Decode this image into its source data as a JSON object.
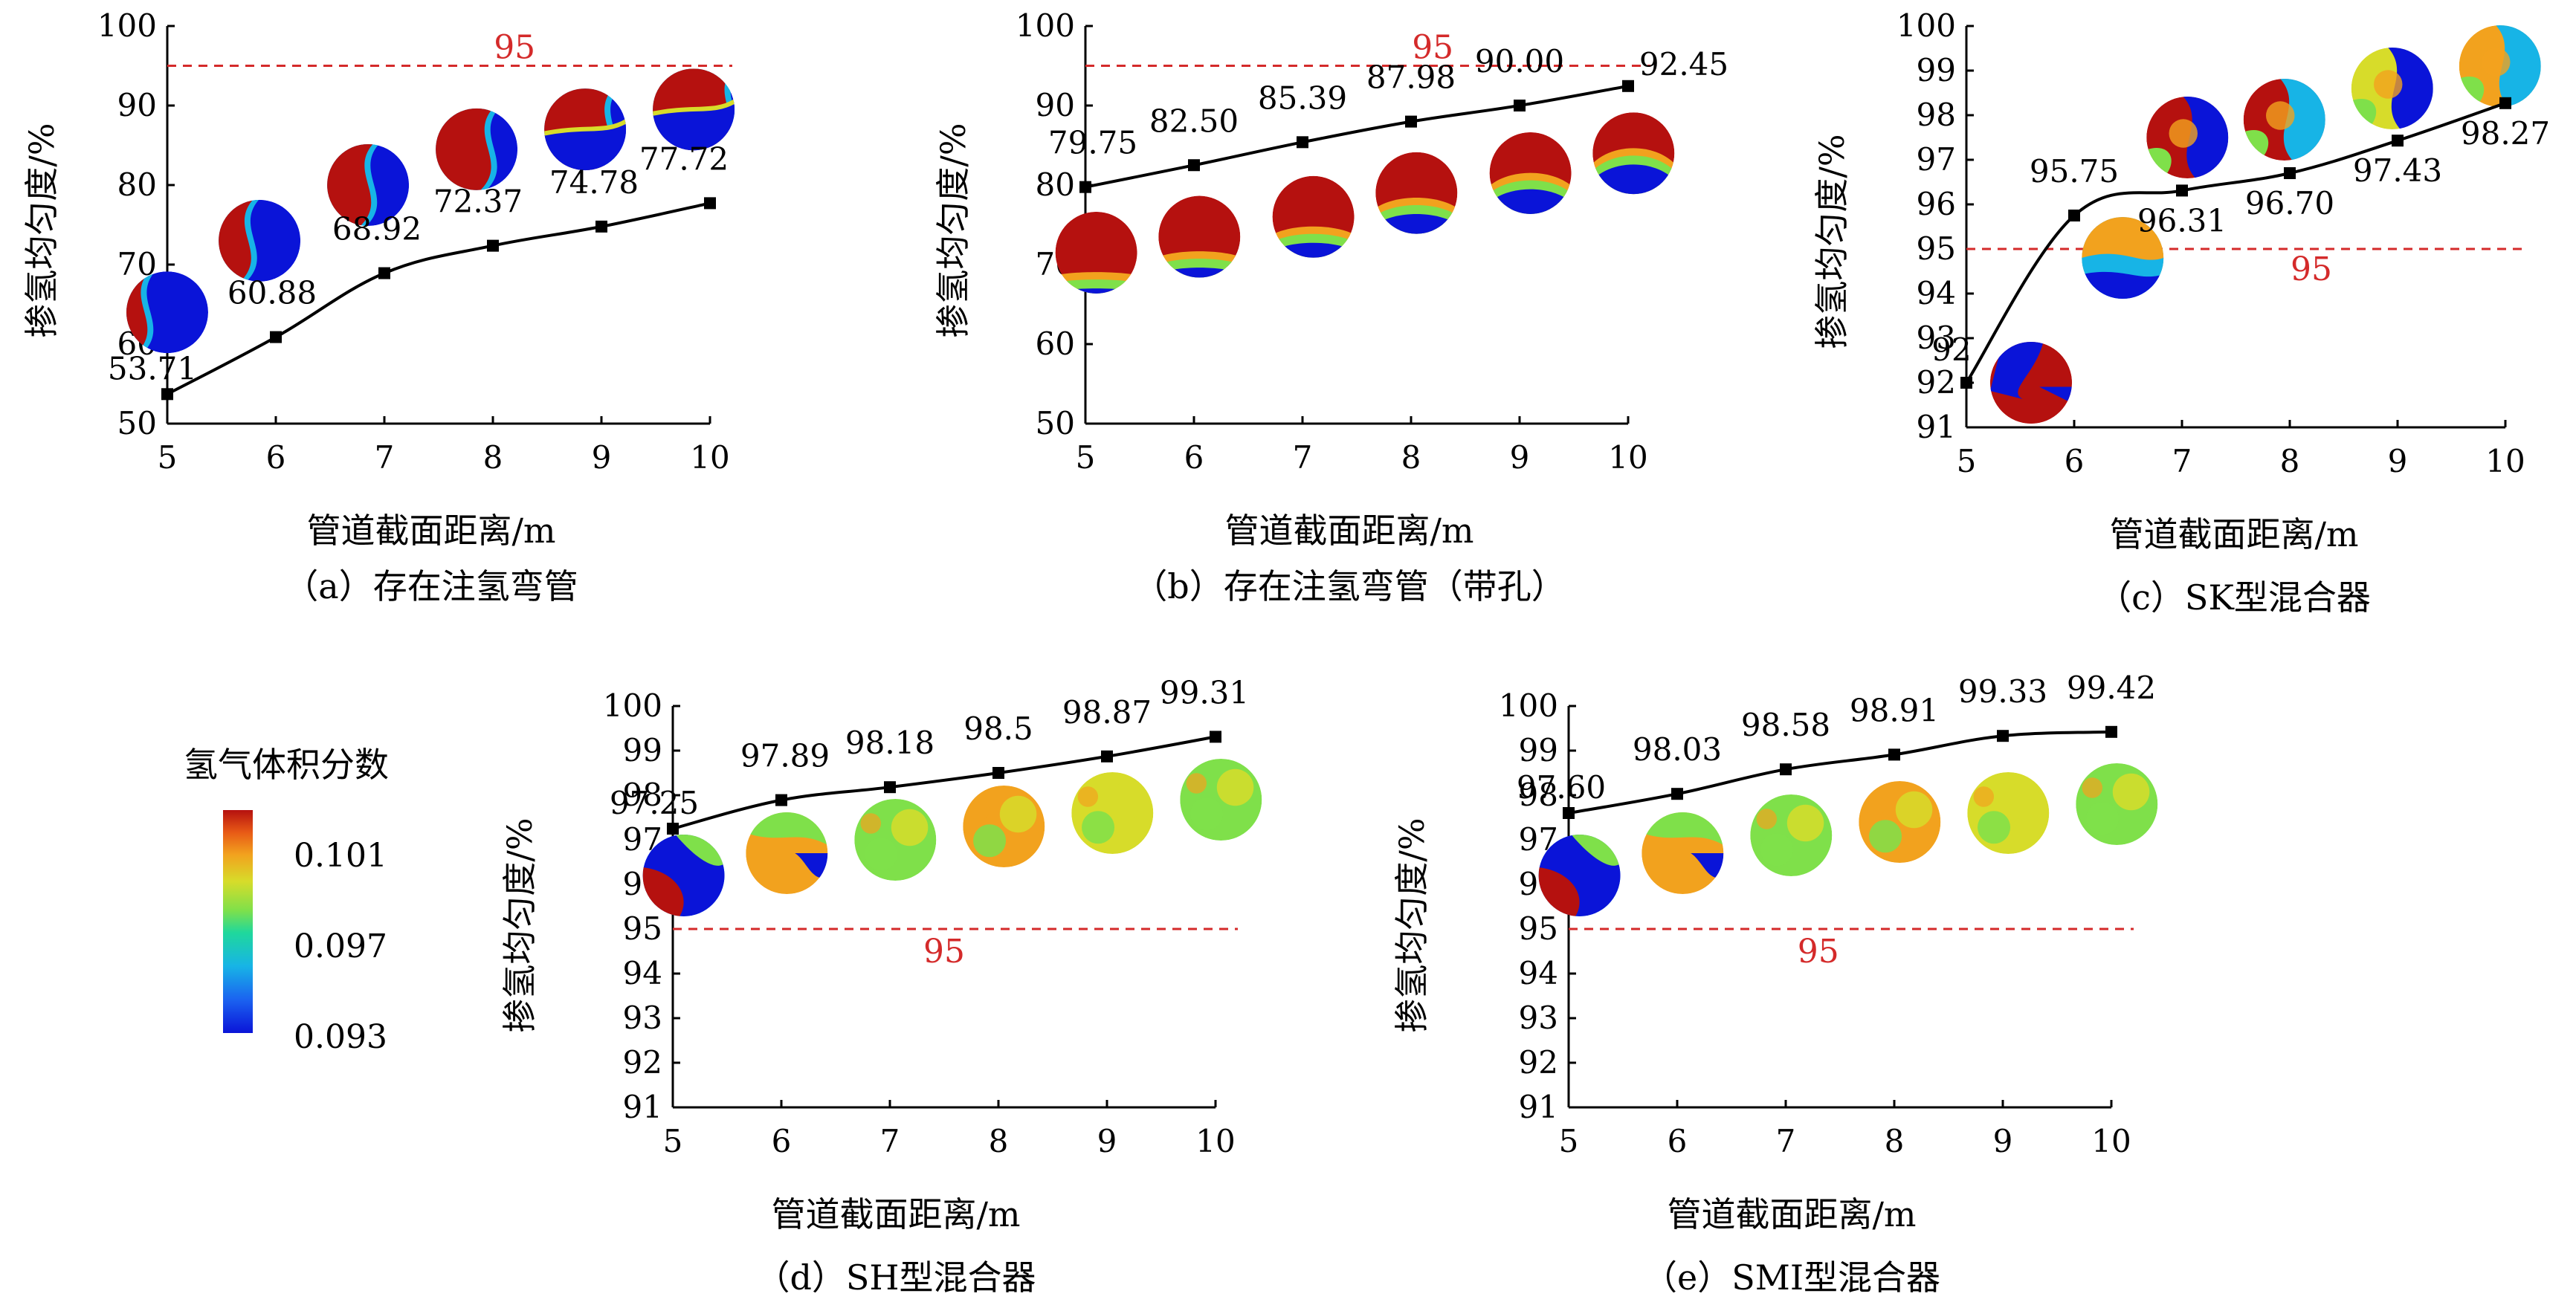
{
  "colors": {
    "line": "#000000",
    "reference": "#d42a2a",
    "colormap": [
      "#0a14d8",
      "#1b63f0",
      "#17b4e6",
      "#1fd89c",
      "#7fe04a",
      "#d7dc2a",
      "#f2a21e",
      "#e85a16",
      "#b5110f"
    ]
  },
  "legend": {
    "title": "氢气体积分数",
    "ticks": [
      "0.101",
      "0.097",
      "0.093"
    ]
  },
  "chart_data": [
    {
      "id": "a",
      "type": "line",
      "caption": "（a）存在注氢弯管",
      "xlabel": "管道截面距离/m",
      "ylabel": "掺氢均匀度/%",
      "x": [
        5,
        6,
        7,
        8,
        9,
        10
      ],
      "y": [
        53.71,
        60.88,
        68.92,
        72.37,
        74.78,
        77.72
      ],
      "labels": [
        "53.71",
        "60.88",
        "68.92",
        "72.37",
        "74.78",
        "77.72"
      ],
      "ylim": [
        50,
        100
      ],
      "yticks": [
        50,
        60,
        70,
        80,
        90,
        100
      ],
      "reference": {
        "value": 95,
        "label": "95"
      },
      "section_style": "red-blue-split"
    },
    {
      "id": "b",
      "type": "line",
      "caption": "（b）存在注氢弯管（带孔）",
      "xlabel": "管道截面距离/m",
      "ylabel": "掺氢均匀度/%",
      "x": [
        5,
        6,
        7,
        8,
        9,
        10
      ],
      "y": [
        79.75,
        82.5,
        85.39,
        87.98,
        90.0,
        92.45
      ],
      "labels": [
        "79.75",
        "82.50",
        "85.39",
        "87.98",
        "90.00",
        "92.45"
      ],
      "ylim": [
        50,
        100
      ],
      "yticks": [
        50,
        60,
        70,
        80,
        90,
        100
      ],
      "reference": {
        "value": 95,
        "label": "95"
      },
      "section_style": "red-bottom-band"
    },
    {
      "id": "c",
      "type": "line",
      "caption": "（c）SK型混合器",
      "xlabel": "管道截面距离/m",
      "ylabel": "掺氢均匀度/%",
      "x": [
        5,
        6,
        7,
        8,
        9,
        10
      ],
      "y": [
        92.0,
        95.75,
        96.31,
        96.7,
        97.43,
        98.27
      ],
      "labels": [
        "92",
        "95.75",
        "96.31",
        "96.70",
        "97.43",
        "98.27"
      ],
      "ylim": [
        91,
        100
      ],
      "yticks": [
        91,
        92,
        93,
        94,
        95,
        96,
        97,
        98,
        99,
        100
      ],
      "reference": {
        "value": 95,
        "label": "95"
      },
      "section_style": "swirl"
    },
    {
      "id": "d",
      "type": "line",
      "caption": "（d）SH型混合器",
      "xlabel": "管道截面距离/m",
      "ylabel": "掺氢均匀度/%",
      "x": [
        5,
        6,
        7,
        8,
        9,
        10
      ],
      "y": [
        97.25,
        97.89,
        98.18,
        98.5,
        98.87,
        99.31
      ],
      "labels": [
        "97.25",
        "97.89",
        "98.18",
        "98.5",
        "98.87",
        "99.31"
      ],
      "ylim": [
        91,
        100
      ],
      "yticks": [
        91,
        92,
        93,
        94,
        95,
        96,
        97,
        98,
        99,
        100
      ],
      "reference": {
        "value": 95,
        "label": "95"
      },
      "section_style": "mixed"
    },
    {
      "id": "e",
      "type": "line",
      "caption": "（e）SMI型混合器",
      "xlabel": "管道截面距离/m",
      "ylabel": "掺氢均匀度/%",
      "x": [
        5,
        6,
        7,
        8,
        9,
        10
      ],
      "y": [
        97.6,
        98.03,
        98.58,
        98.91,
        99.33,
        99.42
      ],
      "labels": [
        "97.60",
        "98.03",
        "98.58",
        "98.91",
        "99.33",
        "99.42"
      ],
      "ylim": [
        91,
        100
      ],
      "yticks": [
        91,
        92,
        93,
        94,
        95,
        96,
        97,
        98,
        99,
        100
      ],
      "reference": {
        "value": 95,
        "label": "95"
      },
      "section_style": "mixed"
    }
  ]
}
